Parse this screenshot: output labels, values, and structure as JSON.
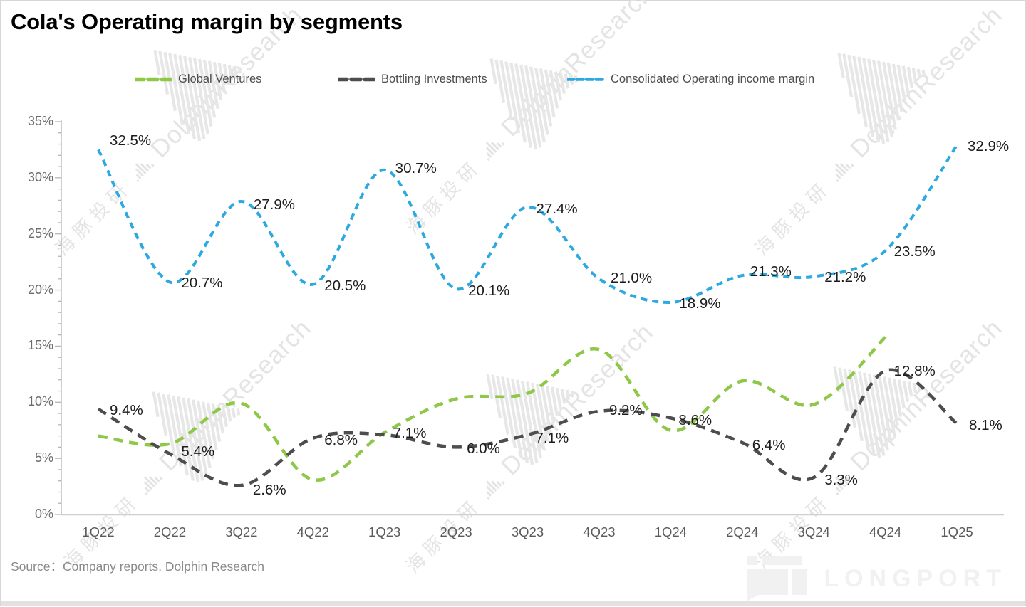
{
  "title": "Cola's Operating margin by segments",
  "source": "Source：Company reports, Dolphin Research",
  "brand": "LONGPORT",
  "watermark": {
    "cn": "海豚投研",
    "en": "DolphinResearch"
  },
  "colors": {
    "green": "#8FC848",
    "dark": "#4D4D4D",
    "blue": "#2BA9E0"
  },
  "chart_data": {
    "type": "line",
    "title": "Cola's Operating margin by segments",
    "categories": [
      "1Q22",
      "2Q22",
      "3Q22",
      "4Q22",
      "1Q23",
      "2Q23",
      "3Q23",
      "4Q23",
      "1Q24",
      "2Q24",
      "3Q24",
      "4Q24",
      "1Q25"
    ],
    "series": [
      {
        "name": "Global Ventures",
        "color_key": "green",
        "labeled": false,
        "values": [
          7.0,
          6.3,
          9.9,
          3.1,
          7.3,
          10.3,
          10.8,
          14.7,
          7.5,
          11.9,
          9.8,
          15.8,
          null
        ]
      },
      {
        "name": "Bottling Investments",
        "color_key": "dark",
        "labeled": true,
        "values": [
          9.4,
          5.4,
          2.6,
          6.8,
          7.1,
          6.0,
          7.1,
          9.2,
          8.6,
          6.4,
          3.3,
          12.8,
          8.1
        ]
      },
      {
        "name": "Consolidated Operating income margin",
        "color_key": "blue",
        "labeled": true,
        "values": [
          32.5,
          20.7,
          27.9,
          20.5,
          30.7,
          20.1,
          27.4,
          21.0,
          18.9,
          21.3,
          21.2,
          23.5,
          32.9
        ]
      }
    ],
    "xlabel": "",
    "ylabel": "",
    "ylim": [
      0,
      35
    ],
    "yticks": [
      "0%",
      "5%",
      "10%",
      "15%",
      "20%",
      "25%",
      "30%",
      "35%"
    ],
    "grid": false,
    "legend_position": "top",
    "line_style": "dashed smooth"
  }
}
